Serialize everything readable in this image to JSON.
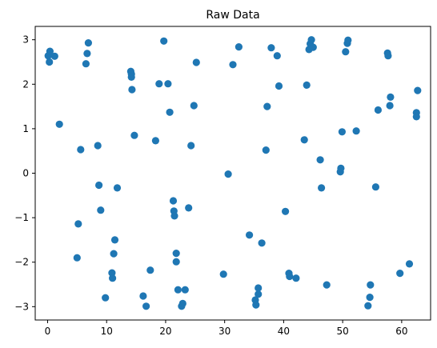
{
  "chart_data": {
    "type": "scatter",
    "title": "Raw Data",
    "xlabel": "",
    "ylabel": "",
    "xlim": [
      -2.1,
      64.9
    ],
    "ylim": [
      -3.3,
      3.3
    ],
    "grid": false,
    "xticks": [
      0,
      10,
      20,
      30,
      40,
      50,
      60
    ],
    "yticks": [
      -3,
      -2,
      -1,
      0,
      1,
      2,
      3
    ],
    "marker_color": "#1f77b4",
    "points": [
      [
        0.1,
        2.64
      ],
      [
        0.3,
        2.5
      ],
      [
        0.4,
        2.74
      ],
      [
        1.2,
        2.63
      ],
      [
        2.0,
        1.1
      ],
      [
        5.0,
        -1.9
      ],
      [
        5.2,
        -1.14
      ],
      [
        5.6,
        0.53
      ],
      [
        6.5,
        2.46
      ],
      [
        6.7,
        2.69
      ],
      [
        6.9,
        2.93
      ],
      [
        8.5,
        0.62
      ],
      [
        8.7,
        -0.27
      ],
      [
        9.0,
        -0.83
      ],
      [
        9.8,
        -2.8
      ],
      [
        10.9,
        -2.24
      ],
      [
        11.0,
        -2.36
      ],
      [
        11.2,
        -1.81
      ],
      [
        11.4,
        -1.5
      ],
      [
        11.8,
        -0.33
      ],
      [
        14.1,
        2.29
      ],
      [
        14.2,
        2.23
      ],
      [
        14.2,
        2.16
      ],
      [
        14.3,
        1.88
      ],
      [
        14.7,
        0.85
      ],
      [
        16.2,
        -2.76
      ],
      [
        16.7,
        -2.99
      ],
      [
        17.4,
        -2.18
      ],
      [
        18.3,
        0.73
      ],
      [
        18.9,
        2.01
      ],
      [
        19.7,
        2.97
      ],
      [
        20.4,
        2.01
      ],
      [
        20.7,
        1.37
      ],
      [
        21.3,
        -0.62
      ],
      [
        21.4,
        -0.85
      ],
      [
        21.5,
        -0.96
      ],
      [
        21.8,
        -1.8
      ],
      [
        21.8,
        -1.99
      ],
      [
        22.1,
        -2.62
      ],
      [
        22.7,
        -2.99
      ],
      [
        22.9,
        -2.93
      ],
      [
        23.3,
        -2.62
      ],
      [
        23.9,
        -0.78
      ],
      [
        24.3,
        0.62
      ],
      [
        24.8,
        1.52
      ],
      [
        25.2,
        2.49
      ],
      [
        29.8,
        -2.27
      ],
      [
        30.6,
        -0.02
      ],
      [
        31.4,
        2.44
      ],
      [
        32.4,
        2.84
      ],
      [
        34.2,
        -1.39
      ],
      [
        35.2,
        -2.85
      ],
      [
        35.3,
        -2.96
      ],
      [
        35.7,
        -2.72
      ],
      [
        35.7,
        -2.58
      ],
      [
        36.3,
        -1.57
      ],
      [
        37.0,
        0.52
      ],
      [
        37.2,
        1.5
      ],
      [
        37.9,
        2.82
      ],
      [
        38.9,
        2.64
      ],
      [
        39.2,
        1.96
      ],
      [
        40.3,
        -0.86
      ],
      [
        40.9,
        -2.25
      ],
      [
        41.0,
        -2.32
      ],
      [
        42.1,
        -2.36
      ],
      [
        43.5,
        0.75
      ],
      [
        43.9,
        1.98
      ],
      [
        44.3,
        2.78
      ],
      [
        44.5,
        2.91
      ],
      [
        44.7,
        3.0
      ],
      [
        45.0,
        2.83
      ],
      [
        46.2,
        0.3
      ],
      [
        46.4,
        -0.33
      ],
      [
        47.3,
        -2.51
      ],
      [
        49.6,
        0.03
      ],
      [
        49.7,
        0.11
      ],
      [
        49.9,
        0.93
      ],
      [
        50.5,
        2.73
      ],
      [
        50.8,
        2.92
      ],
      [
        50.9,
        2.99
      ],
      [
        52.3,
        0.95
      ],
      [
        54.3,
        -2.98
      ],
      [
        54.6,
        -2.79
      ],
      [
        54.7,
        -2.51
      ],
      [
        55.6,
        -0.31
      ],
      [
        56.0,
        1.42
      ],
      [
        57.6,
        2.7
      ],
      [
        57.7,
        2.64
      ],
      [
        58.0,
        1.52
      ],
      [
        58.1,
        1.71
      ],
      [
        59.7,
        -2.25
      ],
      [
        61.3,
        -2.04
      ],
      [
        62.5,
        1.36
      ],
      [
        62.5,
        1.27
      ],
      [
        62.7,
        1.86
      ]
    ]
  }
}
